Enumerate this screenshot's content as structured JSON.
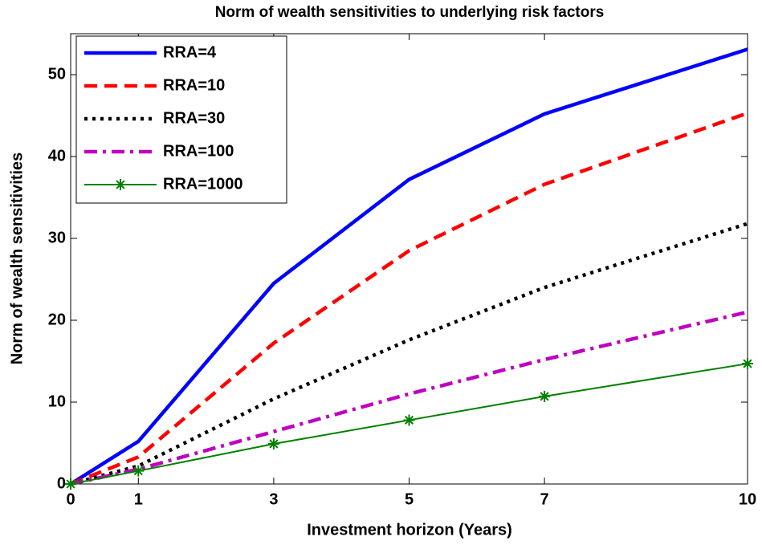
{
  "chart_data": {
    "type": "line",
    "title": "Norm of wealth sensitivities to underlying risk factors",
    "x_label": "Investment horizon (Years)",
    "y_label": "Norm of wealth sensitivities",
    "x": [
      0,
      1,
      3,
      5,
      7,
      10
    ],
    "xlim": [
      0,
      10
    ],
    "xticks": [
      0,
      1,
      3,
      5,
      7,
      10
    ],
    "ylim": [
      0,
      55
    ],
    "yticks": [
      0,
      10,
      20,
      30,
      40,
      50
    ],
    "legend": "upper left",
    "series": [
      {
        "name": "RRA=4",
        "color": "#0000ff",
        "linestyle": "solid",
        "values": [
          0,
          5.2,
          24.5,
          37.2,
          45.2,
          53.1
        ]
      },
      {
        "name": "RRA=10",
        "color": "#ff0000",
        "linestyle": "dashed",
        "values": [
          0,
          3.3,
          17.2,
          28.5,
          36.6,
          45.3
        ]
      },
      {
        "name": "RRA=30",
        "color": "#000000",
        "linestyle": "dotted",
        "values": [
          0,
          2.2,
          10.4,
          17.6,
          24.0,
          31.8
        ]
      },
      {
        "name": "RRA=100",
        "color": "#bf00bf",
        "linestyle": "dashdot",
        "values": [
          0,
          1.8,
          6.4,
          11.0,
          15.2,
          21.0
        ]
      },
      {
        "name": "RRA=1000",
        "color": "#008000",
        "linestyle": "solid",
        "marker": "star",
        "values": [
          0,
          1.6,
          4.9,
          7.8,
          10.7,
          14.7
        ]
      }
    ]
  }
}
